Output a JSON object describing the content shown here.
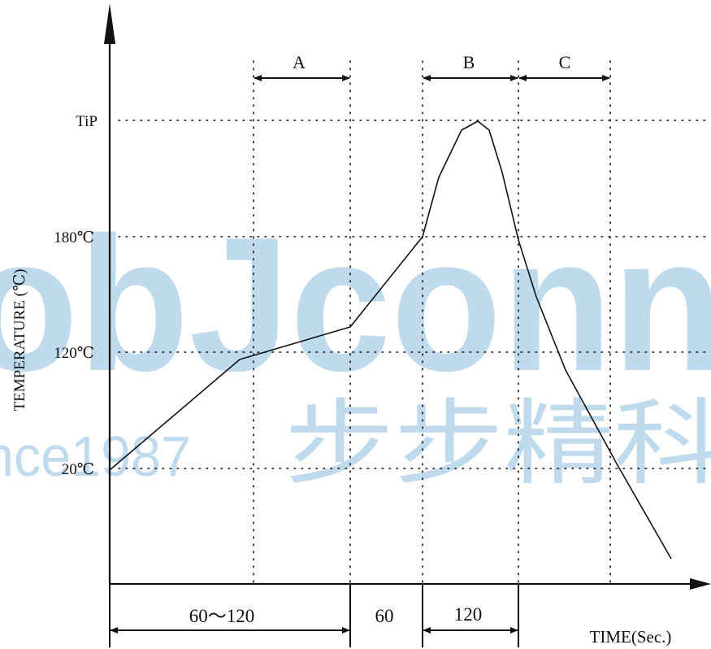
{
  "colors": {
    "line": "#111111",
    "grid": "#111111",
    "watermark": "#5a9fd0"
  },
  "y_axis": {
    "label": "TEMPERATURE (℃)",
    "ticks": [
      "TiP",
      "180℃",
      "120℃",
      "20℃"
    ]
  },
  "x_axis": {
    "label": "TIME(Sec.)"
  },
  "zones": [
    {
      "label": "A"
    },
    {
      "label": "B"
    },
    {
      "label": "C"
    }
  ],
  "durations": [
    "60～120",
    "60",
    "120"
  ],
  "watermark": {
    "logo_text": "obJconn",
    "since_text": "nce1987",
    "chinese_text": "步步精科"
  },
  "chart_data": {
    "type": "line",
    "title": "",
    "xlabel": "TIME(Sec.)",
    "ylabel": "TEMPERATURE (℃)",
    "y_levels": [
      "20℃",
      "120℃",
      "180℃",
      "TiP"
    ],
    "phase_durations_sec": [
      "60～120",
      "60",
      "120"
    ],
    "zones": [
      "A",
      "B",
      "C"
    ],
    "grid": "dotted"
  }
}
